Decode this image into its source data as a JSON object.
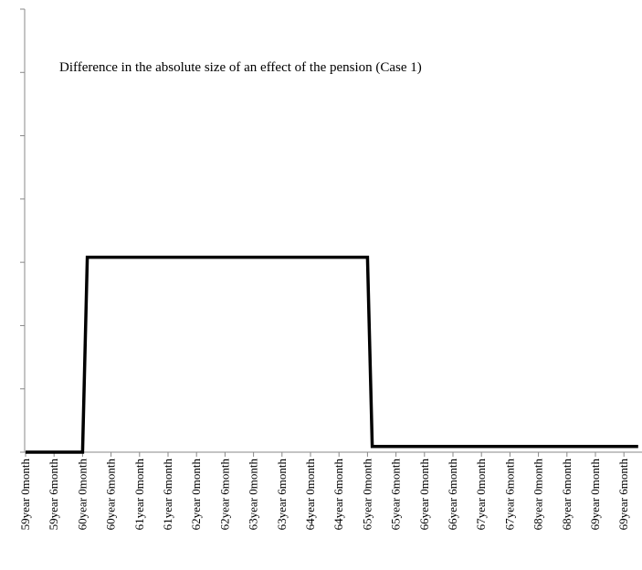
{
  "chart_data": {
    "type": "line",
    "title": "Difference in the absolute size of an effect of the pension (Case 1)",
    "categories": [
      "59year 0month",
      null,
      null,
      null,
      null,
      null,
      "59year 6month",
      null,
      null,
      null,
      null,
      null,
      "60year 0month",
      null,
      null,
      null,
      null,
      null,
      "60year 6month",
      null,
      null,
      null,
      null,
      null,
      "61year 0month",
      null,
      null,
      null,
      null,
      null,
      "61year 6month",
      null,
      null,
      null,
      null,
      null,
      "62year 0month",
      null,
      null,
      null,
      null,
      null,
      "62year 6month",
      null,
      null,
      null,
      null,
      null,
      "63year 0month",
      null,
      null,
      null,
      null,
      null,
      "63year 6month",
      null,
      null,
      null,
      null,
      null,
      "64year 0month",
      null,
      null,
      null,
      null,
      null,
      "64year 6month",
      null,
      null,
      null,
      null,
      null,
      "65year 0month",
      null,
      null,
      null,
      null,
      null,
      "65year 6month",
      null,
      null,
      null,
      null,
      null,
      "66year 0month",
      null,
      null,
      null,
      null,
      null,
      "66year 6month",
      null,
      null,
      null,
      null,
      null,
      "67year 0month",
      null,
      null,
      null,
      null,
      null,
      "67year 6month",
      null,
      null,
      null,
      null,
      null,
      "68year 0month",
      null,
      null,
      null,
      null,
      null,
      "68year 6month",
      null,
      null,
      null,
      null,
      null,
      "69year 0month",
      null,
      null,
      null,
      null,
      null,
      "69year 6month",
      null,
      null,
      null
    ],
    "series": [
      {
        "color": "#000000",
        "values": [
          0,
          0,
          0,
          0,
          0,
          0,
          0,
          0,
          0,
          0,
          0,
          0,
          0,
          3.08,
          3.08,
          3.08,
          3.08,
          3.08,
          3.08,
          3.08,
          3.08,
          3.08,
          3.08,
          3.08,
          3.08,
          3.08,
          3.08,
          3.08,
          3.08,
          3.08,
          3.08,
          3.08,
          3.08,
          3.08,
          3.08,
          3.08,
          3.08,
          3.08,
          3.08,
          3.08,
          3.08,
          3.08,
          3.08,
          3.08,
          3.08,
          3.08,
          3.08,
          3.08,
          3.08,
          3.08,
          3.08,
          3.08,
          3.08,
          3.08,
          3.08,
          3.08,
          3.08,
          3.08,
          3.08,
          3.08,
          3.08,
          3.08,
          3.08,
          3.08,
          3.08,
          3.08,
          3.08,
          3.08,
          3.08,
          3.08,
          3.08,
          3.08,
          3.08,
          0.09,
          0.09,
          0.09,
          0.09,
          0.09,
          0.09,
          0.09,
          0.09,
          0.09,
          0.09,
          0.09,
          0.09,
          0.09,
          0.09,
          0.09,
          0.09,
          0.09,
          0.09,
          0.09,
          0.09,
          0.09,
          0.09,
          0.09,
          0.09,
          0.09,
          0.09,
          0.09,
          0.09,
          0.09,
          0.09,
          0.09,
          0.09,
          0.09,
          0.09,
          0.09,
          0.09,
          0.09,
          0.09,
          0.09,
          0.09,
          0.09,
          0.09,
          0.09,
          0.09,
          0.09,
          0.09,
          0.09,
          0.09,
          0.09,
          0.09,
          0.09,
          0.09,
          0.09,
          0.09,
          0.09,
          0.09,
          0.09
        ]
      }
    ],
    "ylim": [
      0,
      7
    ],
    "yticks": [
      0,
      1,
      2,
      3,
      4,
      5,
      6,
      7
    ]
  }
}
